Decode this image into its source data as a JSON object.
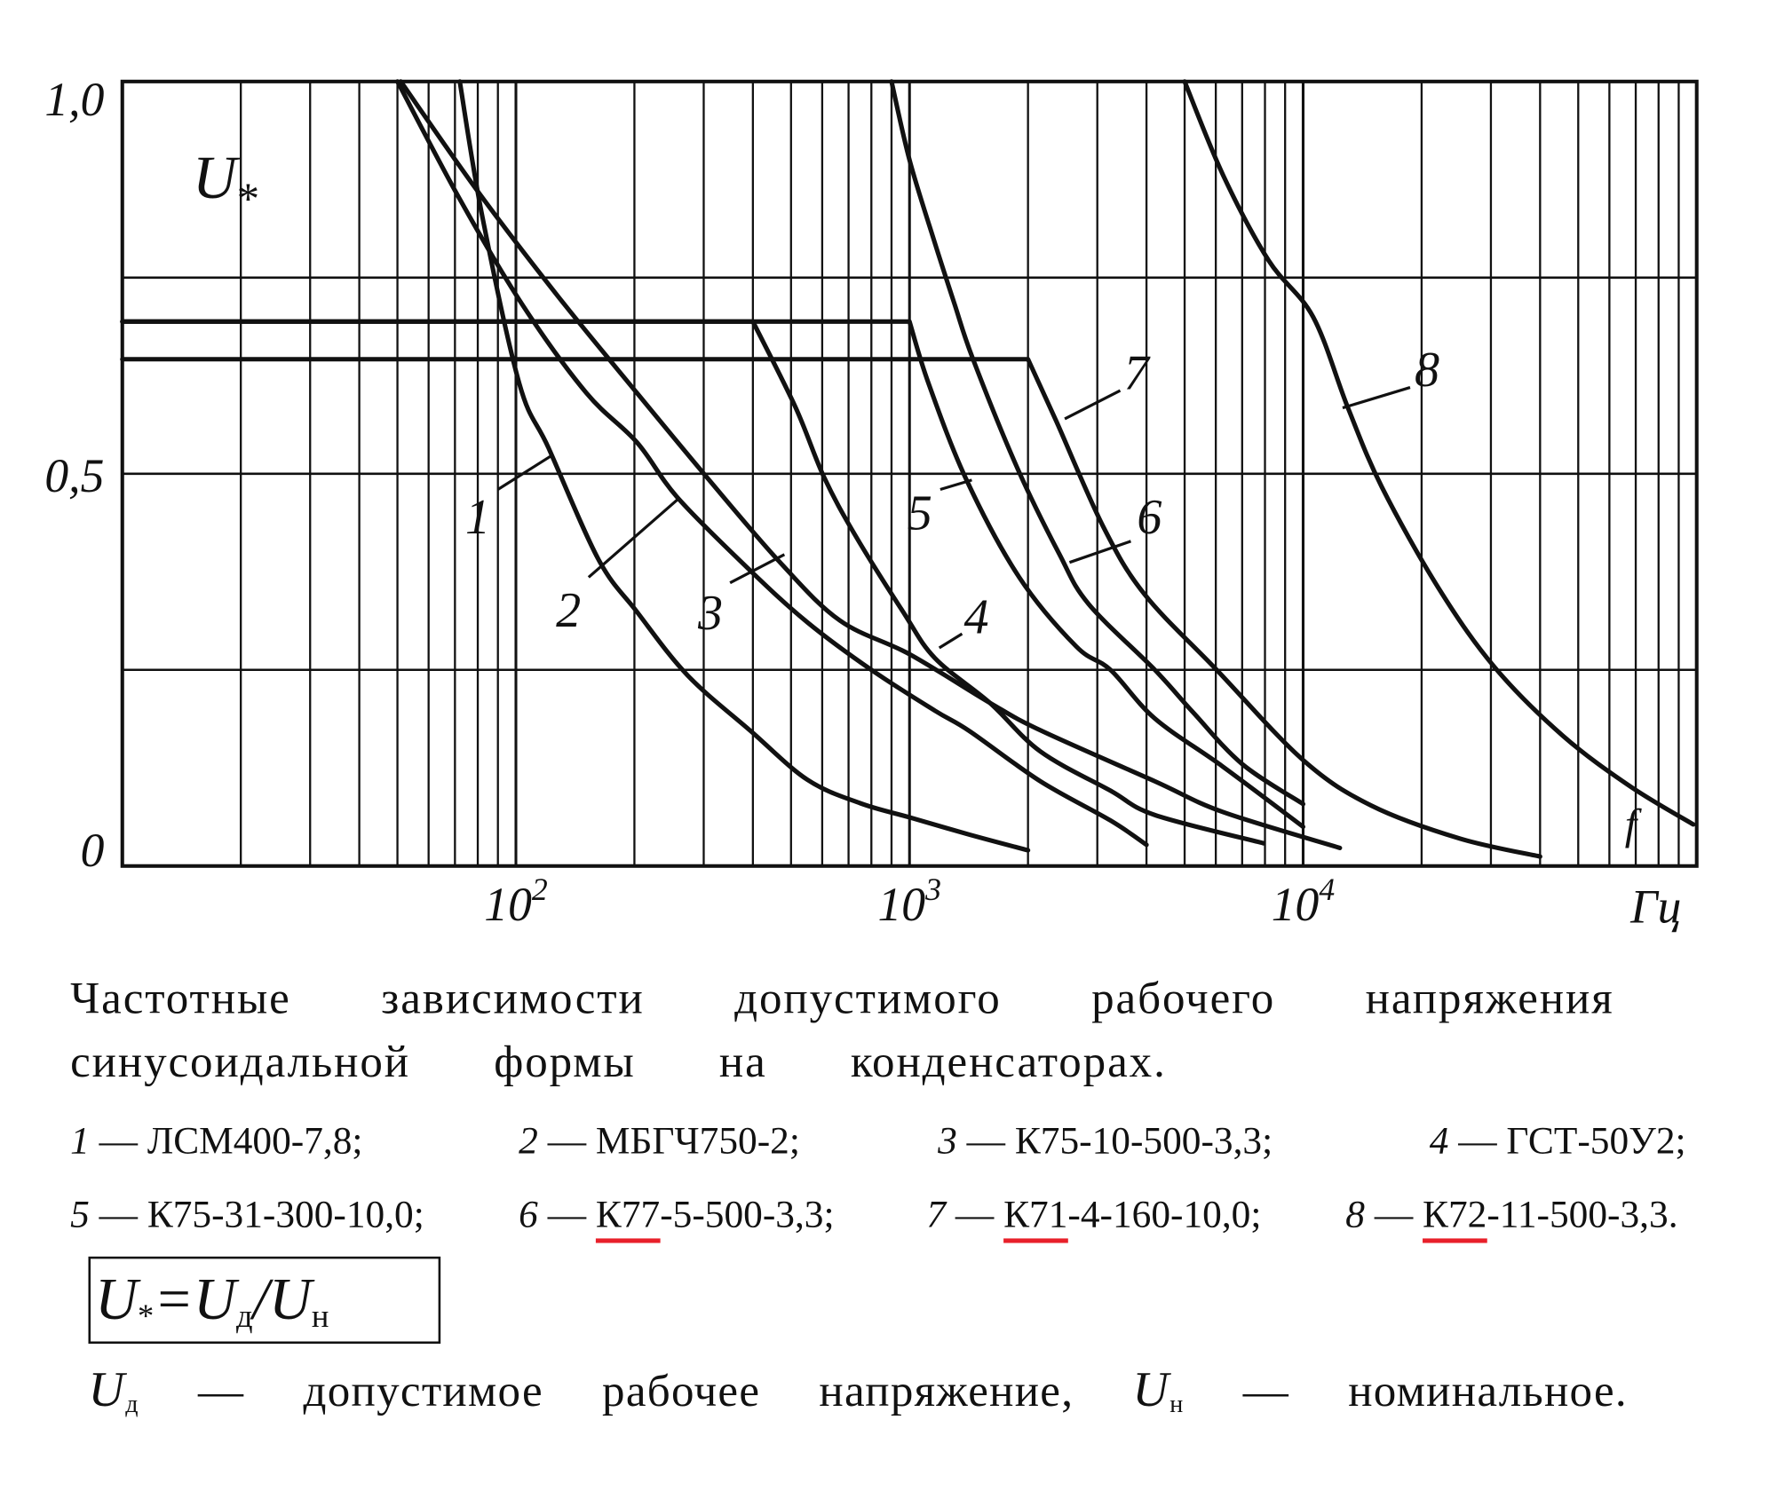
{
  "chart_data": {
    "type": "line",
    "x_scale": "log",
    "xlim": [
      10,
      100000
    ],
    "ylim": [
      0,
      1
    ],
    "grid": true,
    "ylabel": {
      "symbol": "U",
      "subscript": "*"
    },
    "xlabel": "f",
    "x_unit": "Гц",
    "y_ticks": [
      {
        "value": 1.0,
        "label": "1,0"
      },
      {
        "value": 0.5,
        "label": "0,5"
      },
      {
        "value": 0.0,
        "label": "0"
      }
    ],
    "x_ticks": [
      {
        "value": 100,
        "base": "10",
        "exp": "2"
      },
      {
        "value": 1000,
        "base": "10",
        "exp": "3"
      },
      {
        "value": 10000,
        "base": "10",
        "exp": "4"
      }
    ],
    "series": [
      {
        "name": "1",
        "points": [
          [
            72,
            1.0
          ],
          [
            82,
            0.83
          ],
          [
            102,
            0.615
          ],
          [
            121,
            0.533
          ],
          [
            162,
            0.391
          ],
          [
            203,
            0.324
          ],
          [
            273,
            0.243
          ],
          [
            395,
            0.172
          ],
          [
            550,
            0.11
          ],
          [
            750,
            0.08
          ],
          [
            1000,
            0.062
          ],
          [
            1420,
            0.04
          ],
          [
            2000,
            0.02
          ]
        ]
      },
      {
        "name": "2",
        "points": [
          [
            50,
            1.0
          ],
          [
            72,
            0.85
          ],
          [
            104,
            0.715
          ],
          [
            151,
            0.603
          ],
          [
            203,
            0.54
          ],
          [
            258,
            0.469
          ],
          [
            395,
            0.376
          ],
          [
            552,
            0.31
          ],
          [
            800,
            0.25
          ],
          [
            1160,
            0.198
          ],
          [
            1420,
            0.172
          ],
          [
            2150,
            0.108
          ],
          [
            3240,
            0.058
          ],
          [
            4000,
            0.027
          ]
        ]
      },
      {
        "name": "3",
        "points": [
          [
            51,
            1.0
          ],
          [
            80,
            0.86
          ],
          [
            128,
            0.726
          ],
          [
            203,
            0.603
          ],
          [
            305,
            0.496
          ],
          [
            467,
            0.388
          ],
          [
            665,
            0.313
          ],
          [
            1000,
            0.27
          ],
          [
            1600,
            0.208
          ],
          [
            2150,
            0.173
          ],
          [
            4200,
            0.108
          ],
          [
            6240,
            0.069
          ],
          [
            12400,
            0.023
          ]
        ]
      },
      {
        "name": "4",
        "plateau": 0.694,
        "points": [
          [
            400,
            0.694
          ],
          [
            513,
            0.585
          ],
          [
            606,
            0.496
          ],
          [
            729,
            0.421
          ],
          [
            963,
            0.324
          ],
          [
            1160,
            0.265
          ],
          [
            1600,
            0.208
          ],
          [
            2150,
            0.146
          ],
          [
            3240,
            0.096
          ],
          [
            4200,
            0.065
          ],
          [
            7930,
            0.029
          ]
        ]
      },
      {
        "name": "5",
        "plateau": 0.694,
        "points": [
          [
            1000,
            0.694
          ],
          [
            1118,
            0.615
          ],
          [
            1396,
            0.492
          ],
          [
            1900,
            0.368
          ],
          [
            2650,
            0.28
          ],
          [
            3240,
            0.25
          ],
          [
            4200,
            0.188
          ],
          [
            6240,
            0.127
          ],
          [
            10000,
            0.05
          ]
        ]
      },
      {
        "name": "6",
        "points": [
          [
            900,
            1.0
          ],
          [
            1000,
            0.9
          ],
          [
            1150,
            0.8
          ],
          [
            1300,
            0.717
          ],
          [
            1450,
            0.646
          ],
          [
            1880,
            0.507
          ],
          [
            2400,
            0.398
          ],
          [
            2850,
            0.334
          ],
          [
            4200,
            0.25
          ],
          [
            5250,
            0.196
          ],
          [
            7000,
            0.13
          ],
          [
            10000,
            0.079
          ]
        ]
      },
      {
        "name": "7",
        "plateau": 0.646,
        "points": [
          [
            2000,
            0.646
          ],
          [
            2360,
            0.567
          ],
          [
            3110,
            0.432
          ],
          [
            3960,
            0.346
          ],
          [
            6030,
            0.25
          ],
          [
            10000,
            0.135
          ],
          [
            14900,
            0.077
          ],
          [
            25000,
            0.035
          ],
          [
            40000,
            0.012
          ]
        ]
      },
      {
        "name": "8",
        "points": [
          [
            5000,
            1.0
          ],
          [
            6270,
            0.88
          ],
          [
            8170,
            0.772
          ],
          [
            10600,
            0.7
          ],
          [
            13000,
            0.584
          ],
          [
            15850,
            0.483
          ],
          [
            22100,
            0.354
          ],
          [
            30700,
            0.253
          ],
          [
            45700,
            0.166
          ],
          [
            68000,
            0.101
          ],
          [
            98000,
            0.053
          ]
        ]
      }
    ],
    "annotations": [
      {
        "text": "1",
        "x": 80,
        "y": 0.447,
        "from": [
          90,
          0.48
        ],
        "to": [
          124,
          0.524
        ]
      },
      {
        "text": "2",
        "x": 136,
        "y": 0.328,
        "from": [
          153,
          0.368
        ],
        "to": [
          260,
          0.469
        ]
      },
      {
        "text": "3",
        "x": 312,
        "y": 0.325,
        "from": [
          350,
          0.361
        ],
        "to": [
          481,
          0.397
        ]
      },
      {
        "text": "4",
        "x": 1479,
        "y": 0.32,
        "from": [
          1360,
          0.296
        ],
        "to": [
          1190,
          0.278
        ]
      },
      {
        "text": "5",
        "x": 1062,
        "y": 0.452,
        "from": [
          1197,
          0.48
        ],
        "to": [
          1440,
          0.492
        ]
      },
      {
        "text": "6",
        "x": 4070,
        "y": 0.447,
        "from": [
          3650,
          0.414
        ],
        "to": [
          2550,
          0.387
        ]
      },
      {
        "text": "7",
        "x": 3770,
        "y": 0.631,
        "from": [
          3430,
          0.606
        ],
        "to": [
          2480,
          0.57
        ]
      },
      {
        "text": "8",
        "x": 20650,
        "y": 0.635,
        "from": [
          18700,
          0.61
        ],
        "to": [
          12600,
          0.584
        ]
      }
    ],
    "colors": {
      "ink": "#111111",
      "background": "#ffffff"
    }
  },
  "caption": {
    "line1": "Частотные зависимости допустимого рабочего напряжения",
    "line2": "синусоидальной формы на конденсаторах."
  },
  "legend": {
    "underline_color": "#e8202a",
    "items": [
      {
        "num": "1",
        "dash": " — ",
        "prefix": "",
        "model": "ЛСМ400-7,8;",
        "highlight": false
      },
      {
        "num": "2",
        "dash": " — ",
        "prefix": "",
        "model": "МБГЧ750-2;",
        "highlight": false
      },
      {
        "num": "3",
        "dash": " — ",
        "prefix": "",
        "model": "К75-10-500-3,3;",
        "highlight": false
      },
      {
        "num": "4",
        "dash": " — ",
        "prefix": "",
        "model": "ГСТ-50У2;",
        "highlight": false
      },
      {
        "num": "5",
        "dash": " — ",
        "prefix": "",
        "model": "К75-31-300-10,0;",
        "highlight": false
      },
      {
        "num": "6",
        "dash": " — ",
        "prefix": "К77",
        "model": "-5-500-3,3;",
        "highlight": true
      },
      {
        "num": "7",
        "dash": " — ",
        "prefix": "К71",
        "model": "-4-160-10,0;",
        "highlight": true
      },
      {
        "num": "8",
        "dash": " — ",
        "prefix": "К72",
        "model": "-11-500-3,3.",
        "highlight": true
      }
    ]
  },
  "formula": {
    "lhs": "U",
    "lhs_sub": "*",
    "eq": "=",
    "num": "U",
    "num_sub": "д",
    "slash": "/",
    "den": "U",
    "den_sub": "н"
  },
  "definition": {
    "ud": "U",
    "ud_sub": "д",
    "ud_text": " — допустимое рабочее напряжение, ",
    "un": "U",
    "un_sub": "н",
    "un_text": " — номинальное."
  }
}
